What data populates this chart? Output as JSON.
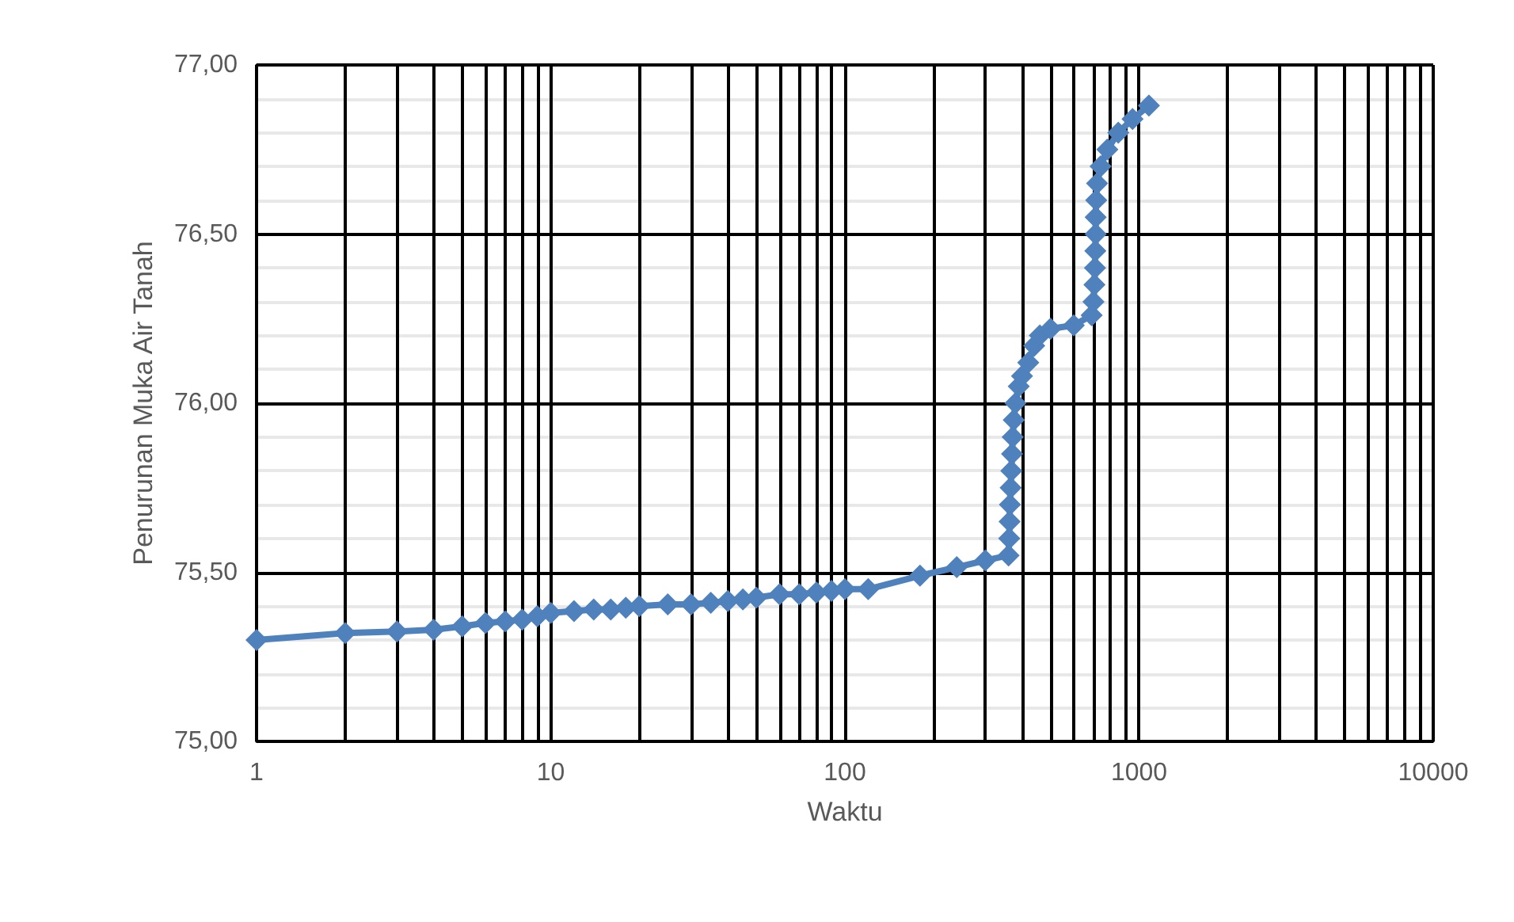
{
  "chart_data": {
    "type": "line",
    "xlabel": "Waktu",
    "ylabel": "Penurunan Muka Air Tanah",
    "log": "x",
    "grid": true,
    "marker": "diamond",
    "line_style": "solid",
    "xlim": [
      1,
      10000
    ],
    "xticks": [
      1,
      10,
      100,
      1000,
      10000
    ],
    "ylim": [
      75,
      77
    ],
    "yticks": [
      {
        "value": 75,
        "label": "75,00"
      },
      {
        "value": 75.5,
        "label": "75,50"
      },
      {
        "value": 76,
        "label": "76,00"
      },
      {
        "value": 76.5,
        "label": "76,50"
      },
      {
        "value": 77,
        "label": "77,00"
      }
    ],
    "series": [
      {
        "color": "#4f81bd",
        "x": [
          1,
          2,
          3,
          4,
          5,
          6,
          7,
          8,
          9,
          10,
          12,
          14,
          16,
          18,
          20,
          25,
          30,
          35,
          40,
          45,
          50,
          60,
          70,
          80,
          90,
          100,
          120,
          180,
          240,
          300,
          360,
          362,
          363,
          364,
          366,
          368,
          370,
          372,
          375,
          380,
          390,
          400,
          420,
          440,
          460,
          500,
          600,
          690,
          700,
          705,
          708,
          710,
          712,
          712,
          715,
          720,
          740,
          780,
          850,
          950,
          1080
        ],
        "values": [
          75.3,
          75.32,
          75.325,
          75.33,
          75.34,
          75.35,
          75.355,
          75.36,
          75.37,
          75.38,
          75.385,
          75.39,
          75.39,
          75.395,
          75.4,
          75.405,
          75.405,
          75.41,
          75.415,
          75.42,
          75.425,
          75.435,
          75.435,
          75.44,
          75.445,
          75.45,
          75.45,
          75.49,
          75.515,
          75.535,
          75.55,
          75.6,
          75.65,
          75.7,
          75.75,
          75.8,
          75.85,
          75.9,
          75.95,
          76.0,
          76.05,
          76.08,
          76.12,
          76.17,
          76.2,
          76.22,
          76.23,
          76.26,
          76.3,
          76.35,
          76.4,
          76.45,
          76.5,
          76.55,
          76.6,
          76.65,
          76.7,
          76.75,
          76.8,
          76.84,
          76.88
        ]
      }
    ]
  }
}
